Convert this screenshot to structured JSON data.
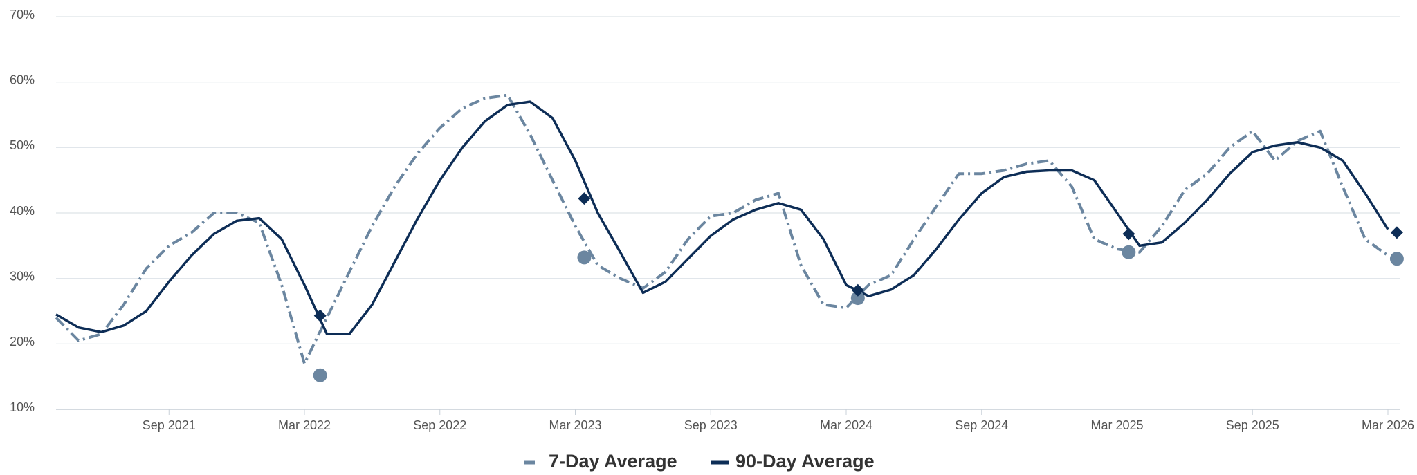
{
  "chart_data": {
    "type": "line",
    "x": [
      2021.25,
      2021.333,
      2021.417,
      2021.5,
      2021.583,
      2021.667,
      2021.75,
      2021.833,
      2021.917,
      2022.0,
      2022.083,
      2022.167,
      2022.25,
      2022.333,
      2022.417,
      2022.5,
      2022.583,
      2022.667,
      2022.75,
      2022.833,
      2022.917,
      2023.0,
      2023.083,
      2023.167,
      2023.25,
      2023.333,
      2023.417,
      2023.5,
      2023.583,
      2023.667,
      2023.75,
      2023.833,
      2023.917,
      2024.0,
      2024.083,
      2024.167,
      2024.25,
      2024.333,
      2024.417,
      2024.5,
      2024.583,
      2024.667,
      2024.75,
      2024.833,
      2024.917,
      2025.0,
      2025.083,
      2025.167,
      2025.25,
      2025.333,
      2025.417,
      2025.5,
      2025.583,
      2025.667,
      2025.75,
      2025.833,
      2025.917,
      2026.0,
      2026.083,
      2026.167
    ],
    "series": [
      {
        "name": "7-Day Average",
        "color": "#6b86a0",
        "dashed": true,
        "values": [
          24,
          20.5,
          21.5,
          26,
          31.5,
          35,
          37,
          40,
          40,
          38.5,
          29,
          17,
          24,
          31,
          38,
          44,
          49,
          53,
          56,
          57.5,
          58,
          52,
          45,
          38,
          32,
          30,
          28.5,
          31,
          36,
          39.5,
          40,
          42,
          43,
          32,
          26,
          25.5,
          29,
          30.5,
          36,
          41,
          46,
          46,
          46.5,
          47.5,
          48,
          44,
          36,
          34.5,
          34,
          38,
          43.5,
          46,
          50,
          52.5,
          48,
          51,
          52.5,
          44,
          36,
          33.5
        ]
      },
      {
        "name": "90-Day Average",
        "color": "#0d2d56",
        "dashed": false,
        "values": [
          24.5,
          22.5,
          21.8,
          22.8,
          25,
          29.5,
          33.5,
          36.8,
          38.8,
          39.2,
          36,
          29,
          21.5,
          21.5,
          26,
          32.5,
          39,
          45,
          50,
          54,
          56.5,
          57,
          54.5,
          48,
          40,
          34,
          27.8,
          29.5,
          33,
          36.5,
          39,
          40.5,
          41.5,
          40.5,
          36,
          29,
          27.3,
          28.3,
          30.5,
          34.5,
          39,
          43,
          45.5,
          46.3,
          46.5,
          46.5,
          45,
          40,
          35,
          35.5,
          38.5,
          42,
          46,
          49.3,
          50.3,
          50.8,
          50,
          48,
          43,
          37.5
        ]
      }
    ],
    "markers": [
      {
        "shape": "circle",
        "color": "#6b86a0",
        "x": [
          2022.225,
          2023.2,
          2024.21,
          2025.21,
          2026.2
        ],
        "values": [
          15.2,
          33.2,
          27,
          34,
          33
        ]
      },
      {
        "shape": "diamond",
        "color": "#0d2d56",
        "x": [
          2022.225,
          2023.2,
          2024.21,
          2025.21,
          2026.2
        ],
        "values": [
          24.3,
          42.2,
          28.2,
          36.8,
          37
        ]
      }
    ],
    "xlim": [
      2021.25,
      2026.213
    ],
    "xticks": [
      {
        "value": 2021.667,
        "label": "Sep 2021"
      },
      {
        "value": 2022.167,
        "label": "Mar 2022"
      },
      {
        "value": 2022.667,
        "label": "Sep 2022"
      },
      {
        "value": 2023.167,
        "label": "Mar 2023"
      },
      {
        "value": 2023.667,
        "label": "Sep 2023"
      },
      {
        "value": 2024.167,
        "label": "Mar 2024"
      },
      {
        "value": 2024.667,
        "label": "Sep 2024"
      },
      {
        "value": 2025.167,
        "label": "Mar 2025"
      },
      {
        "value": 2025.667,
        "label": "Sep 2025"
      },
      {
        "value": 2026.167,
        "label": "Mar 2026"
      }
    ],
    "ylim": [
      10,
      70
    ],
    "yticks": [
      {
        "value": 10,
        "label": "10%"
      },
      {
        "value": 20,
        "label": "20%"
      },
      {
        "value": 30,
        "label": "30%"
      },
      {
        "value": 40,
        "label": "40%"
      },
      {
        "value": 50,
        "label": "50%"
      },
      {
        "value": 60,
        "label": "60%"
      },
      {
        "value": 70,
        "label": "70%"
      }
    ],
    "grid": true
  }
}
